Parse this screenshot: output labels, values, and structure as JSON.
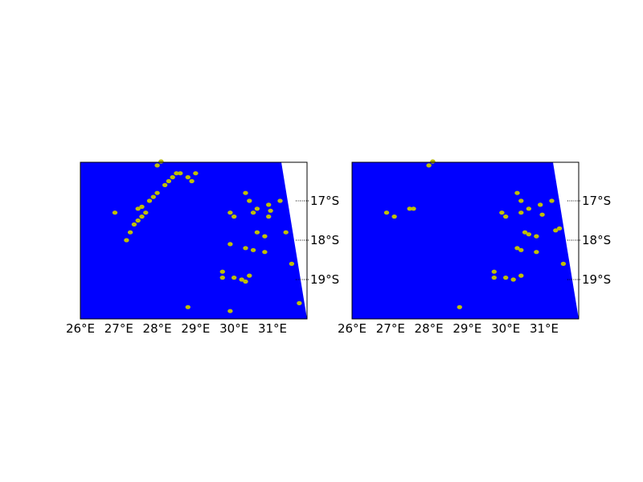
{
  "colors": {
    "water": "#0000ff",
    "land_points": "#bfbf00",
    "no_data": "#ffffff",
    "frame": "#000000",
    "graticule": "#000000"
  },
  "lon_labels": [
    "26°E",
    "27°E",
    "28°E",
    "29°E",
    "30°E",
    "31°E"
  ],
  "lat_labels": [
    "17°S",
    "18°S",
    "19°S"
  ],
  "extent": {
    "lon_min": 26.0,
    "lon_max": 31.9,
    "lat_top": -16.02,
    "lat_bottom": -20.0
  },
  "chart_data": [
    {
      "type": "scatter",
      "panel": "left",
      "points": [
        [
          27.2,
          -18.0
        ],
        [
          27.3,
          -17.8
        ],
        [
          27.4,
          -17.6
        ],
        [
          27.5,
          -17.5
        ],
        [
          27.6,
          -17.4
        ],
        [
          27.7,
          -17.3
        ],
        [
          27.8,
          -17.0
        ],
        [
          27.9,
          -16.9
        ],
        [
          28.0,
          -16.8
        ],
        [
          28.2,
          -16.6
        ],
        [
          28.3,
          -16.5
        ],
        [
          28.4,
          -16.4
        ],
        [
          28.5,
          -16.3
        ],
        [
          28.6,
          -16.3
        ],
        [
          28.8,
          -16.4
        ],
        [
          28.9,
          -16.5
        ],
        [
          29.0,
          -16.3
        ],
        [
          28.0,
          -16.1
        ],
        [
          28.1,
          -16.0
        ],
        [
          26.9,
          -17.3
        ],
        [
          27.5,
          -17.2
        ],
        [
          27.6,
          -17.15
        ],
        [
          30.3,
          -16.8
        ],
        [
          30.4,
          -17.0
        ],
        [
          29.9,
          -17.3
        ],
        [
          30.0,
          -17.4
        ],
        [
          30.5,
          -17.3
        ],
        [
          30.6,
          -17.2
        ],
        [
          30.9,
          -17.1
        ],
        [
          30.95,
          -17.25
        ],
        [
          30.9,
          -17.4
        ],
        [
          31.2,
          -17.0
        ],
        [
          30.6,
          -17.8
        ],
        [
          30.8,
          -17.9
        ],
        [
          29.9,
          -18.1
        ],
        [
          30.3,
          -18.2
        ],
        [
          30.5,
          -18.25
        ],
        [
          30.8,
          -18.3
        ],
        [
          29.7,
          -18.8
        ],
        [
          29.7,
          -18.95
        ],
        [
          30.0,
          -18.95
        ],
        [
          30.2,
          -19.0
        ],
        [
          30.3,
          -19.05
        ],
        [
          30.4,
          -18.9
        ],
        [
          31.35,
          -17.8
        ],
        [
          31.5,
          -18.6
        ],
        [
          31.7,
          -19.6
        ],
        [
          28.8,
          -19.7
        ],
        [
          29.9,
          -19.8
        ]
      ]
    },
    {
      "type": "scatter",
      "panel": "right",
      "points": [
        [
          28.0,
          -16.1
        ],
        [
          28.1,
          -16.0
        ],
        [
          26.9,
          -17.3
        ],
        [
          27.1,
          -17.4
        ],
        [
          27.5,
          -17.2
        ],
        [
          27.6,
          -17.2
        ],
        [
          30.3,
          -16.8
        ],
        [
          30.4,
          -17.0
        ],
        [
          29.9,
          -17.3
        ],
        [
          30.0,
          -17.4
        ],
        [
          30.4,
          -17.3
        ],
        [
          30.6,
          -17.2
        ],
        [
          30.9,
          -17.1
        ],
        [
          30.95,
          -17.35
        ],
        [
          31.2,
          -17.0
        ],
        [
          30.5,
          -17.8
        ],
        [
          30.6,
          -17.85
        ],
        [
          30.8,
          -17.9
        ],
        [
          30.3,
          -18.2
        ],
        [
          30.4,
          -18.25
        ],
        [
          30.8,
          -18.3
        ],
        [
          29.7,
          -18.8
        ],
        [
          29.7,
          -18.95
        ],
        [
          30.0,
          -18.95
        ],
        [
          30.2,
          -19.0
        ],
        [
          30.4,
          -18.9
        ],
        [
          31.3,
          -17.75
        ],
        [
          31.4,
          -17.7
        ],
        [
          31.5,
          -18.6
        ],
        [
          28.8,
          -19.7
        ]
      ]
    }
  ]
}
